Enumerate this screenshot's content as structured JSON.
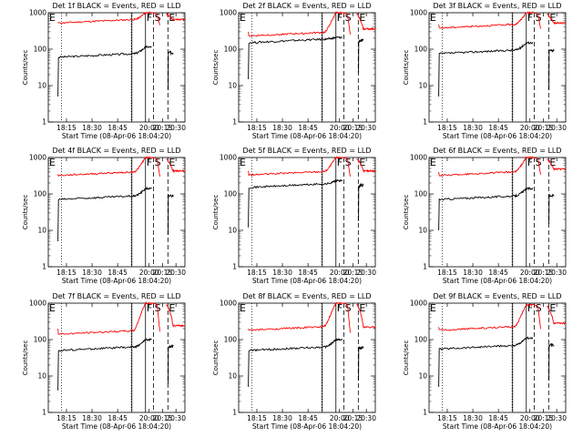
{
  "chart_data": {
    "type": "line",
    "y_scale": "log",
    "ylim": [
      1,
      1000
    ],
    "xlim": [
      "18:04:20",
      "20:40:00"
    ],
    "ylabel": "Counts/sec",
    "xlabel": "Start Time (08-Apr-06 18:04:20)",
    "x_ticks": [
      "18:15",
      "18:30",
      "18:45",
      "20:00",
      "20:15",
      "20:30"
    ],
    "y_ticks": [
      "1",
      "10",
      "100",
      "1000"
    ],
    "markers": [
      {
        "label": "E",
        "time": "18:04:20",
        "style": "dotted"
      },
      {
        "label": "F",
        "time": "19:56",
        "style": "solid"
      },
      {
        "label": "S",
        "time": "20:05",
        "style": "dashed"
      },
      {
        "label": "E",
        "time": "20:21",
        "style": "dashed"
      }
    ],
    "colors": {
      "events": "#000000",
      "lld": "#ff0000"
    },
    "series_names": {
      "events": "BLACK = Events",
      "lld": "RED = LLD"
    },
    "panels": [
      {
        "title": "Det 1f BLACK = Events, RED = LLD",
        "events": {
          "start": 5,
          "base": 60,
          "peak": 115,
          "post": 80
        },
        "lld": {
          "start": 550,
          "base": 520,
          "peak": 1000,
          "post": 650
        }
      },
      {
        "title": "Det 2f BLACK = Events, RED = LLD",
        "events": {
          "start": 15,
          "base": 150,
          "peak": 210,
          "post": 170
        },
        "lld": {
          "start": 300,
          "base": 230,
          "peak": 1000,
          "post": 360
        }
      },
      {
        "title": "Det 3f BLACK = Events, RED = LLD",
        "events": {
          "start": 5,
          "base": 75,
          "peak": 150,
          "post": 90
        },
        "lld": {
          "start": 480,
          "base": 380,
          "peak": 1000,
          "post": 520
        }
      },
      {
        "title": "Det 4f BLACK = Events, RED = LLD",
        "events": {
          "start": 5,
          "base": 70,
          "peak": 140,
          "post": 90
        },
        "lld": {
          "start": 350,
          "base": 320,
          "peak": 1000,
          "post": 430
        }
      },
      {
        "title": "Det 5f BLACK = Events, RED = LLD",
        "events": {
          "start": 12,
          "base": 150,
          "peak": 230,
          "post": 170
        },
        "lld": {
          "start": 430,
          "base": 330,
          "peak": 1000,
          "post": 430
        }
      },
      {
        "title": "Det 6f BLACK = Events, RED = LLD",
        "events": {
          "start": 10,
          "base": 70,
          "peak": 140,
          "post": 90
        },
        "lld": {
          "start": 400,
          "base": 320,
          "peak": 1000,
          "post": 480
        }
      },
      {
        "title": "Det 7f BLACK = Events, RED = LLD",
        "events": {
          "start": 4,
          "base": 50,
          "peak": 100,
          "post": 65
        },
        "lld": {
          "start": 200,
          "base": 140,
          "peak": 1000,
          "post": 240
        }
      },
      {
        "title": "Det 8f BLACK = Events, RED = LLD",
        "events": {
          "start": 5,
          "base": 50,
          "peak": 100,
          "post": 60
        },
        "lld": {
          "start": 200,
          "base": 180,
          "peak": 1000,
          "post": 220
        }
      },
      {
        "title": "Det 9f BLACK = Events, RED = LLD",
        "events": {
          "start": 5,
          "base": 55,
          "peak": 110,
          "post": 70
        },
        "lld": {
          "start": 220,
          "base": 180,
          "peak": 900,
          "post": 280
        }
      }
    ]
  }
}
